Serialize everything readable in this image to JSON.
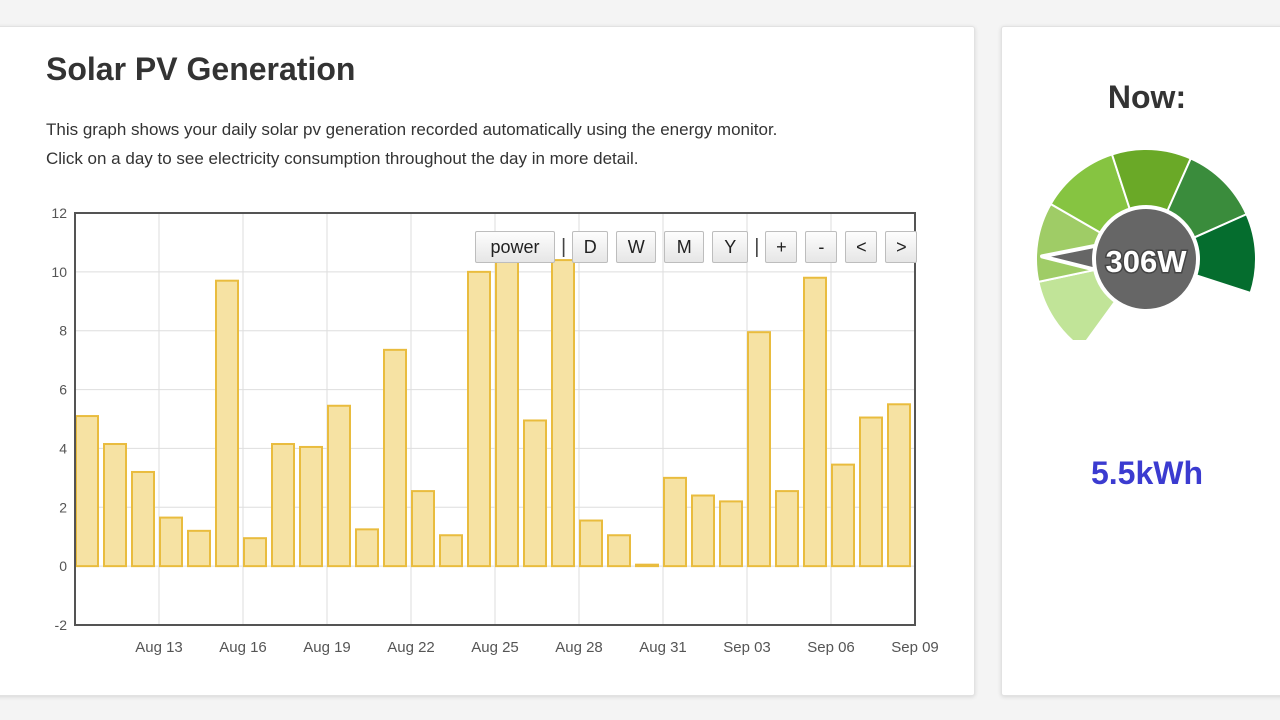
{
  "main": {
    "title": "Solar PV Generation",
    "description_line1": "This graph shows your daily solar pv generation recorded automatically using the energy monitor.",
    "description_line2": "Click on a day to see electricity consumption throughout the day in more detail."
  },
  "toolbar": {
    "power_label": "power",
    "separator": "|",
    "day_label": "D",
    "week_label": "W",
    "month_label": "M",
    "year_label": "Y",
    "zoom_in_label": "+",
    "zoom_out_label": "-",
    "prev_label": "<",
    "next_label": ">"
  },
  "now": {
    "title": "Now:",
    "power": "306W",
    "energy": "5.5kWh",
    "gauge_level": 0.22,
    "gauge_colors": [
      "#c1e498",
      "#9fcc66",
      "#86c441",
      "#6aa927",
      "#3a8c3c",
      "#056d2e"
    ]
  },
  "chart_data": {
    "type": "bar",
    "x": [
      "Aug 10",
      "Aug 11",
      "Aug 12",
      "Aug 13",
      "Aug 14",
      "Aug 15",
      "Aug 16",
      "Aug 17",
      "Aug 18",
      "Aug 19",
      "Aug 20",
      "Aug 21",
      "Aug 22",
      "Aug 23",
      "Aug 24",
      "Aug 25",
      "Aug 26",
      "Aug 27",
      "Aug 28",
      "Aug 29",
      "Aug 30",
      "Aug 31",
      "Sep 01",
      "Sep 02",
      "Sep 03",
      "Sep 04",
      "Sep 05",
      "Sep 06",
      "Sep 07",
      "Sep 08"
    ],
    "values": [
      5.1,
      4.15,
      3.2,
      1.65,
      1.2,
      9.7,
      0.95,
      4.15,
      4.05,
      5.45,
      1.25,
      7.35,
      2.55,
      1.05,
      10.0,
      10.6,
      4.95,
      10.4,
      1.55,
      1.05,
      0.05,
      3.0,
      2.4,
      2.2,
      7.95,
      2.55,
      9.8,
      3.45,
      5.05,
      5.5
    ],
    "xtick_labels": [
      "Aug 13",
      "Aug 16",
      "Aug 19",
      "Aug 22",
      "Aug 25",
      "Aug 28",
      "Aug 31",
      "Sep 03",
      "Sep 06",
      "Sep 09"
    ],
    "ytick_labels": [
      "12",
      "10",
      "8",
      "6",
      "4",
      "2",
      "0",
      "-2"
    ],
    "ylim": [
      -2,
      12
    ],
    "bar_fill": "#f6e2a3",
    "bar_stroke": "#e9bc3e",
    "grid": true
  }
}
